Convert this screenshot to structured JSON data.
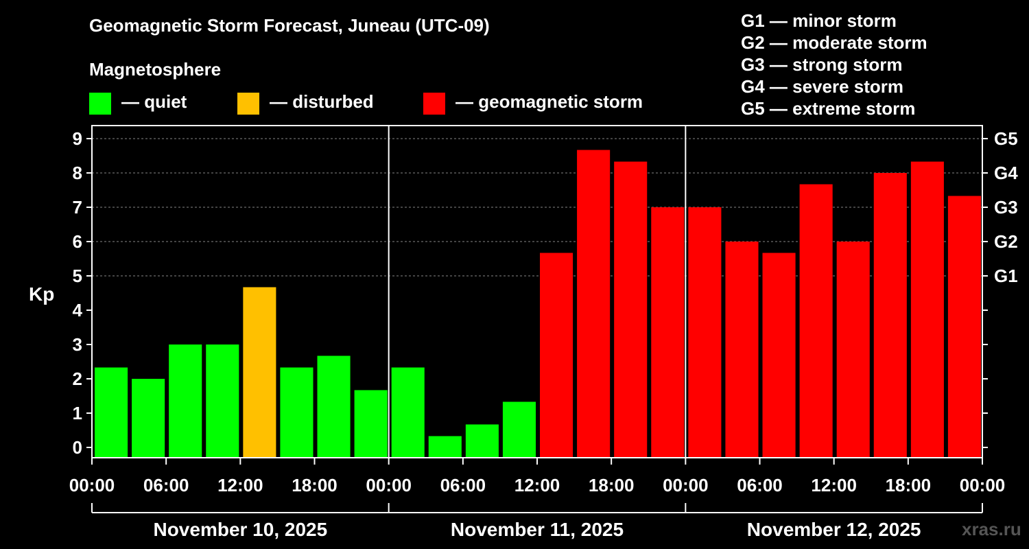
{
  "chart_data": {
    "type": "bar",
    "title": "Geomagnetic Storm Forecast, Juneau (UTC-09)",
    "ylabel": "Kp",
    "ylim": [
      0,
      9
    ],
    "yticks": [
      "0",
      "1",
      "2",
      "3",
      "4",
      "5",
      "6",
      "7",
      "8",
      "9"
    ],
    "right_axis_labels": [
      {
        "kp": 5,
        "label": "G1"
      },
      {
        "kp": 6,
        "label": "G2"
      },
      {
        "kp": 7,
        "label": "G3"
      },
      {
        "kp": 8,
        "label": "G4"
      },
      {
        "kp": 9,
        "label": "G5"
      }
    ],
    "xticks": [
      "00:00",
      "06:00",
      "12:00",
      "18:00",
      "00:00",
      "06:00",
      "12:00",
      "18:00",
      "00:00",
      "06:00",
      "12:00",
      "18:00",
      "00:00"
    ],
    "days": [
      "November 10, 2025",
      "November 11, 2025",
      "November 12, 2025"
    ],
    "values": [
      2.33,
      2.0,
      3.0,
      3.0,
      4.67,
      2.33,
      2.67,
      1.67,
      2.33,
      0.33,
      0.67,
      1.33,
      5.67,
      8.67,
      8.33,
      7.0,
      7.0,
      6.0,
      5.67,
      7.67,
      6.0,
      8.0,
      8.33,
      7.33
    ],
    "levels": [
      "quiet",
      "quiet",
      "quiet",
      "quiet",
      "disturbed",
      "quiet",
      "quiet",
      "quiet",
      "quiet",
      "quiet",
      "quiet",
      "quiet",
      "storm",
      "storm",
      "storm",
      "storm",
      "storm",
      "storm",
      "storm",
      "storm",
      "storm",
      "storm",
      "storm",
      "storm"
    ],
    "grid": "dashed at integer Kp from 5 to 9",
    "colors": {
      "quiet": "#00ff00",
      "disturbed": "#ffc000",
      "storm": "#ff0000",
      "background": "#000000",
      "axis": "#ffffff"
    }
  },
  "legend": {
    "title": "Magnetosphere",
    "items": [
      {
        "label": "— quiet",
        "color": "#00ff00"
      },
      {
        "label": "— disturbed",
        "color": "#ffc000"
      },
      {
        "label": "— geomagnetic storm",
        "color": "#ff0000"
      }
    ]
  },
  "g_scale": [
    "G1 — minor storm",
    "G2 — moderate storm",
    "G3 — strong storm",
    "G4 — severe storm",
    "G5 — extreme storm"
  ],
  "watermark": "xras.ru"
}
